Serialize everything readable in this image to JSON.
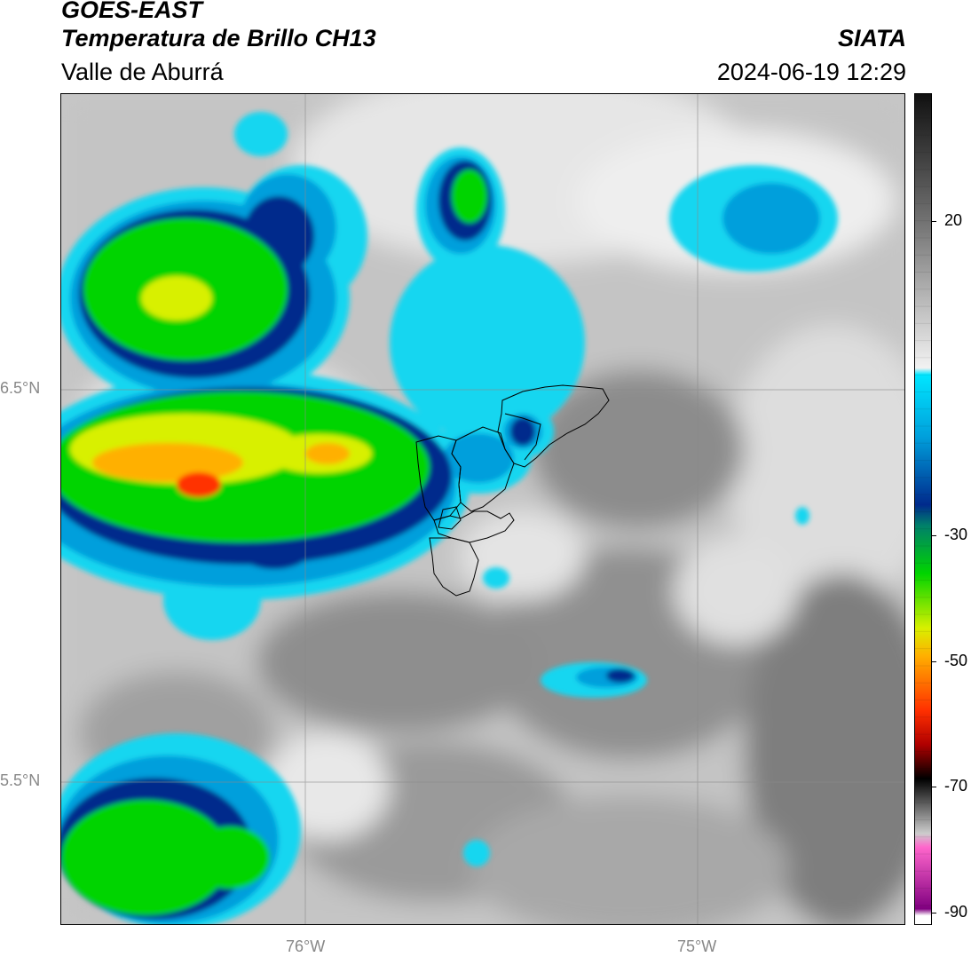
{
  "header": {
    "satellite": "GOES-EAST",
    "product": "Temperatura de Brillo CH13",
    "region": "Valle de Aburrá",
    "agency": "SIATA",
    "datetime": "2024-06-19 12:29"
  },
  "axes": {
    "lat_labels": [
      "6.5°N",
      "5.5°N"
    ],
    "lon_labels": [
      "76°W",
      "75°W"
    ]
  },
  "colorbar": {
    "ticks": [
      "20",
      "-30",
      "-50",
      "-70",
      "-90"
    ],
    "stops": [
      {
        "v": 30,
        "c": "#111111"
      },
      {
        "v": 20,
        "c": "#444444"
      },
      {
        "v": 10,
        "c": "#7a7a7a"
      },
      {
        "v": 0,
        "c": "#b8b8b8"
      },
      {
        "v": -10,
        "c": "#f2f2f2"
      },
      {
        "v": -11,
        "c": "#00e5ff"
      },
      {
        "v": -20,
        "c": "#00a0dc"
      },
      {
        "v": -30,
        "c": "#002a8c"
      },
      {
        "v": -33,
        "c": "#00806a"
      },
      {
        "v": -40,
        "c": "#00d400"
      },
      {
        "v": -48,
        "c": "#d8f000"
      },
      {
        "v": -52,
        "c": "#ffb000"
      },
      {
        "v": -60,
        "c": "#ff3000"
      },
      {
        "v": -65,
        "c": "#b00000"
      },
      {
        "v": -70,
        "c": "#000000"
      },
      {
        "v": -78,
        "c": "#cccccc"
      },
      {
        "v": -80,
        "c": "#ff66cc"
      },
      {
        "v": -89,
        "c": "#800080"
      },
      {
        "v": -90,
        "c": "#ffffff"
      }
    ]
  }
}
